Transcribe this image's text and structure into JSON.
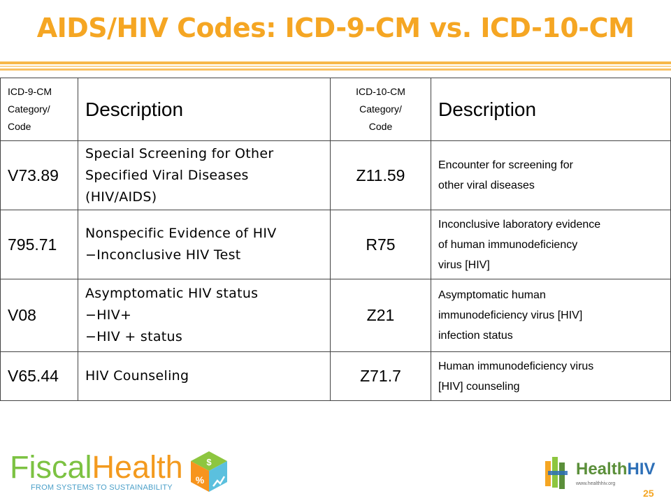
{
  "slide": {
    "title": "AIDS/HIV Codes:  ICD-9-CM vs. ICD-10-CM",
    "page_number": "25"
  },
  "table": {
    "header": {
      "icd9_code_lines": [
        "ICD-9-CM",
        "Category/",
        "Code"
      ],
      "icd9_description": "Description",
      "icd10_code_lines": [
        "ICD-10-CM",
        "Category/",
        "Code"
      ],
      "icd10_description": "Description"
    },
    "rows": [
      {
        "icd9_code": "V73.89",
        "icd9_description_lines": [
          "Special Screening for Other",
          "Specified Viral Diseases",
          "(HIV/AIDS)"
        ],
        "icd10_code": "Z11.59",
        "icd10_description_lines": [
          "Encounter for screening for",
          "other viral diseases"
        ]
      },
      {
        "icd9_code": "795.71",
        "icd9_description_lines": [
          "Nonspecific Evidence of HIV",
          "−Inconclusive HIV Test"
        ],
        "icd10_code": "R75",
        "icd10_description_lines": [
          "Inconclusive laboratory evidence",
          "of human immunodeficiency",
          "virus [HIV]"
        ]
      },
      {
        "icd9_code": "V08",
        "icd9_description_lines": [
          "Asymptomatic HIV status",
          "−HIV+",
          "−HIV + status"
        ],
        "icd10_code": "Z21",
        "icd10_description_lines": [
          "Asymptomatic human",
          "immunodeficiency virus [HIV]",
          "infection status"
        ]
      },
      {
        "icd9_code": "V65.44",
        "icd9_description_lines": [
          "HIV Counseling"
        ],
        "icd10_code": "Z71.7",
        "icd10_description_lines": [
          "Human immunodeficiency virus",
          "[HIV] counseling"
        ]
      }
    ]
  },
  "footer": {
    "left_logo": {
      "word_part1": "Fiscal",
      "word_part2": "Health",
      "tagline": "FROM SYSTEMS TO SUSTAINABILITY",
      "mark_symbols": [
        "$",
        "%"
      ]
    },
    "right_logo": {
      "word_part1": "Health",
      "word_part2": "HIV",
      "url": "www.healthhiv.org"
    }
  },
  "colors": {
    "title": "#f5a623",
    "rule": "#f7b84a",
    "border": "#444444",
    "fiscal_green": "#7cc242",
    "health_orange": "#f39a1e",
    "tagline_blue": "#4a9fc8",
    "hh_green": "#5b8f3a",
    "hh_blue": "#2d6fb7"
  }
}
